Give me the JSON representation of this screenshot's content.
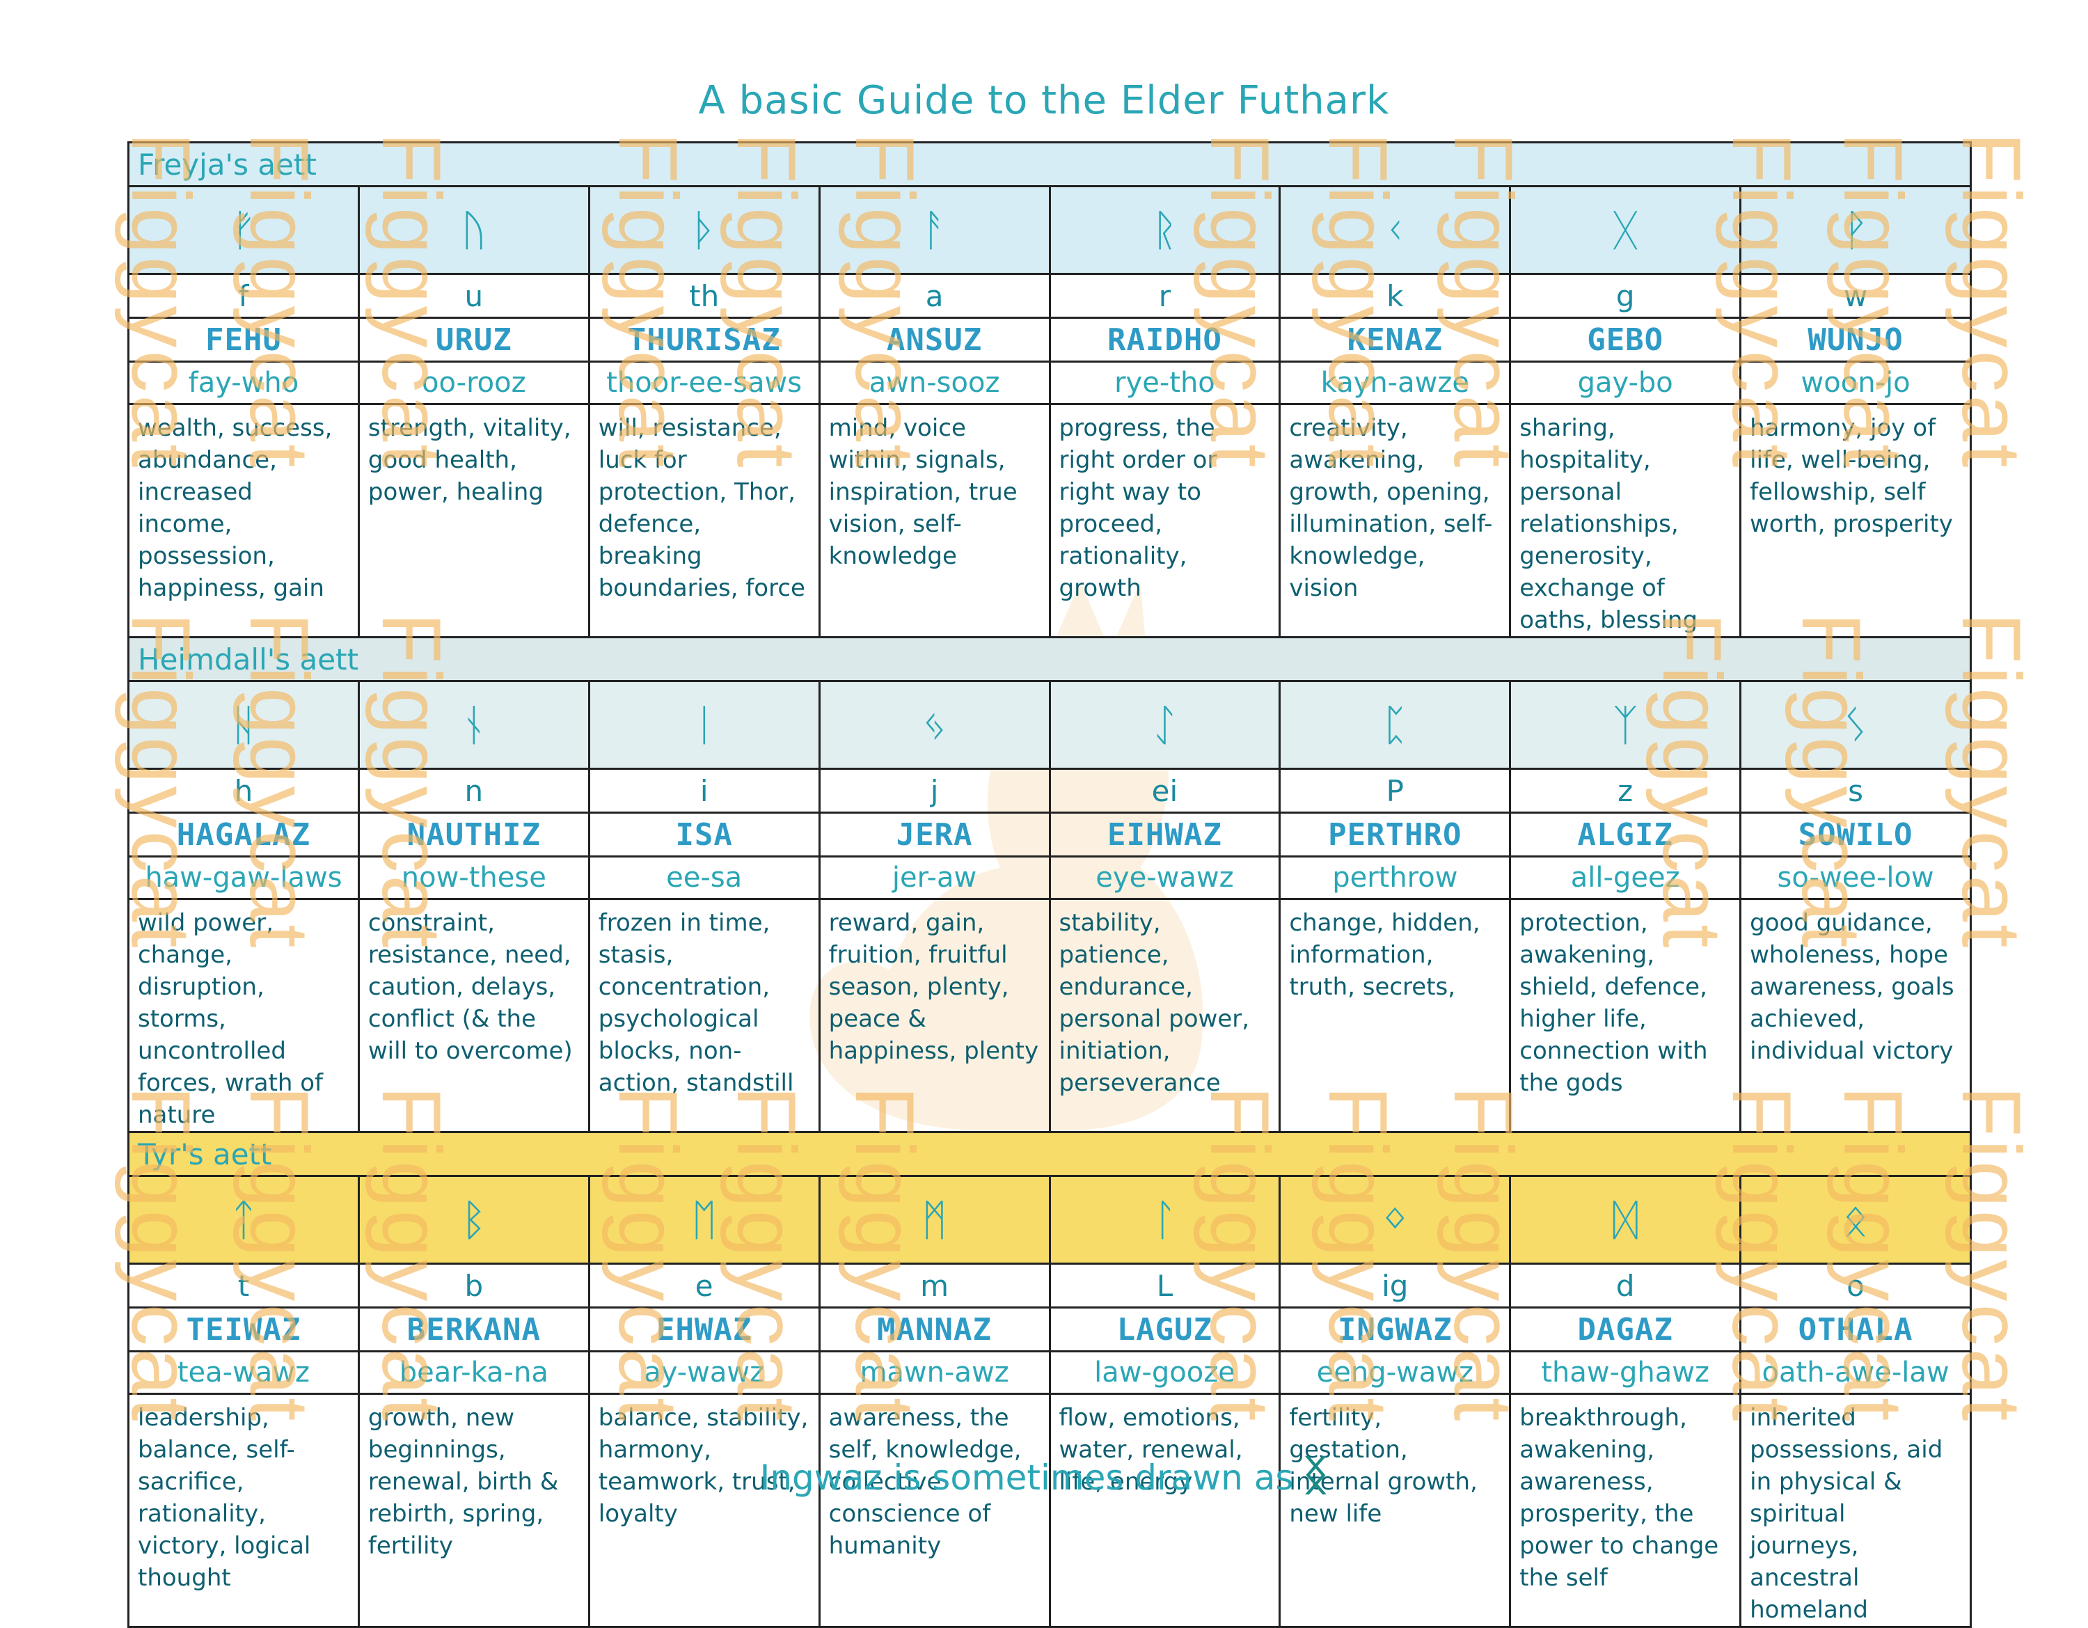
{
  "title": "A basic Guide to the Elder Futhark",
  "watermark": "Figgycat",
  "colors": {
    "accent": "#2aa6b5",
    "freyja_band": "#d6edf6",
    "heimdall_band": "#dbe9ea",
    "tyr_band": "#f7dc6a",
    "watermark": "#f4b860"
  },
  "aetts": [
    {
      "label": "Freyja's aett",
      "runes": [
        {
          "glyph": "ᚠ",
          "letter": "f",
          "name": "FEHU",
          "pron": "fay-who",
          "meaning": "wealth, success, abundance, increased income, possession, happiness, gain"
        },
        {
          "glyph": "ᚢ",
          "letter": "u",
          "name": "URUZ",
          "pron": "oo-rooz",
          "meaning": "strength, vitality, good health, power, healing"
        },
        {
          "glyph": "ᚦ",
          "letter": "th",
          "name": "THURISAZ",
          "pron": "thoor-ee-saws",
          "meaning": "will, resistance, luck for protection, Thor, defence, breaking boundaries, force"
        },
        {
          "glyph": "ᚨ",
          "letter": "a",
          "name": "ANSUZ",
          "pron": "awn-sooz",
          "meaning": "mind, voice within, signals, inspiration, true vision, self-knowledge"
        },
        {
          "glyph": "ᚱ",
          "letter": "r",
          "name": "RAIDHO",
          "pron": "rye-tho",
          "meaning": "progress, the right order or right way to proceed, rationality, growth"
        },
        {
          "glyph": "ᚲ",
          "letter": "k",
          "name": "KENAZ",
          "pron": "kayn-awze",
          "meaning": "creativity, awakening, growth, opening, illumination, self-knowledge, vision"
        },
        {
          "glyph": "ᚷ",
          "letter": "g",
          "name": "GEBO",
          "pron": "gay-bo",
          "meaning": "sharing, hospitality, personal relationships, generosity, exchange of oaths, blessing"
        },
        {
          "glyph": "ᚹ",
          "letter": "w",
          "name": "WUNJO",
          "pron": "woon-jo",
          "meaning": "harmony, joy of life, well-being, fellowship, self worth, prosperity"
        }
      ]
    },
    {
      "label": "Heimdall's aett",
      "runes": [
        {
          "glyph": "ᚺ",
          "letter": "h",
          "name": "HAGALAZ",
          "pron": "haw-gaw-laws",
          "meaning": "wild power, change, disruption, storms, uncontrolled forces, wrath of nature"
        },
        {
          "glyph": "ᚾ",
          "letter": "n",
          "name": "NAUTHIZ",
          "pron": "now-these",
          "meaning": "constraint, resistance, need, caution, delays, conflict (& the will to overcome)"
        },
        {
          "glyph": "ᛁ",
          "letter": "i",
          "name": "ISA",
          "pron": "ee-sa",
          "meaning": "frozen in time, stasis, concentration, psychological blocks, non-action, standstill"
        },
        {
          "glyph": "ᛃ",
          "letter": "j",
          "name": "JERA",
          "pron": "jer-aw",
          "meaning": "reward, gain, fruition, fruitful season, plenty, peace & happiness, plenty"
        },
        {
          "glyph": "ᛇ",
          "letter": "ei",
          "name": "EIHWAZ",
          "pron": "eye-wawz",
          "meaning": "stability, patience, endurance, personal power, initiation, perseverance"
        },
        {
          "glyph": "ᛈ",
          "letter": "P",
          "name": "PERTHRO",
          "pron": "perthrow",
          "meaning": "change, hidden, information, truth, secrets,"
        },
        {
          "glyph": "ᛉ",
          "letter": "z",
          "name": "ALGIZ",
          "pron": "all-geez",
          "meaning": "protection, awakening, shield, defence, higher life, connection with the gods"
        },
        {
          "glyph": "ᛊ",
          "letter": "s",
          "name": "SOWILO",
          "pron": "so-wee-low",
          "meaning": "good guidance, wholeness, hope awareness, goals achieved, individual victory"
        }
      ]
    },
    {
      "label": "Tyr's aett",
      "runes": [
        {
          "glyph": "ᛏ",
          "letter": "t",
          "name": "TEIWAZ",
          "pron": "tea-wawz",
          "meaning": "leadership, balance, self-sacrifice, rationality, victory, logical thought"
        },
        {
          "glyph": "ᛒ",
          "letter": "b",
          "name": "BERKANA",
          "pron": "bear-ka-na",
          "meaning": "growth, new beginnings, renewal, birth & rebirth, spring, fertility"
        },
        {
          "glyph": "ᛖ",
          "letter": "e",
          "name": "EHWAZ",
          "pron": "ay-wawz",
          "meaning": "balance, stability, harmony, teamwork, trust, loyalty"
        },
        {
          "glyph": "ᛗ",
          "letter": "m",
          "name": "MANNAZ",
          "pron": "mawn-awz",
          "meaning": "awareness, the self, knowledge, collective conscience of humanity"
        },
        {
          "glyph": "ᛚ",
          "letter": "L",
          "name": "LAGUZ",
          "pron": "law-gooze",
          "meaning": "flow, emotions, water, renewal, life, energy"
        },
        {
          "glyph": "ᛜ",
          "letter": "ig",
          "name": "INGWAZ",
          "pron": "eeng-wawz",
          "meaning": "fertility, gestation, internal growth, new life"
        },
        {
          "glyph": "ᛞ",
          "letter": "d",
          "name": "DAGAZ",
          "pron": "thaw-ghawz",
          "meaning": "breakthrough, awakening, awareness, prosperity, the power to change the self"
        },
        {
          "glyph": "ᛟ",
          "letter": "o",
          "name": "OTHALA",
          "pron": "oath-awe-law",
          "meaning": "inherited possessions, aid in physical & spiritual journeys, ancestral homeland"
        }
      ]
    }
  ],
  "footer": {
    "text": "Ingwaz is sometimes drawn as",
    "alt_glyph": "ᛝ"
  }
}
